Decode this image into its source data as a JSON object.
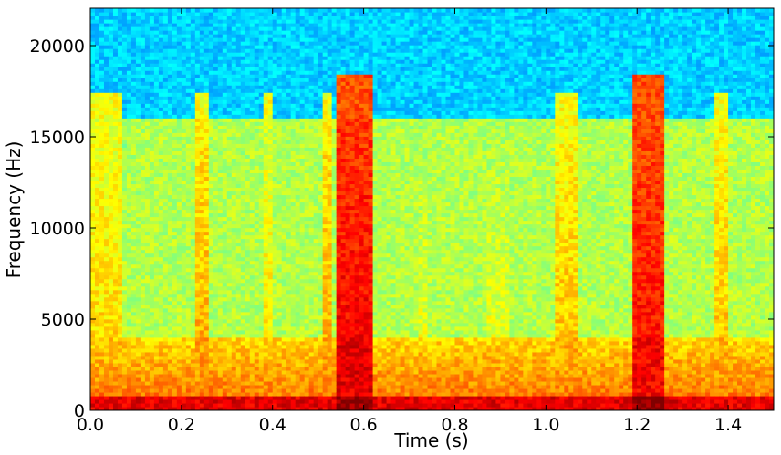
{
  "chart_data": {
    "type": "heatmap",
    "title": "",
    "xlabel": "Time (s)",
    "ylabel": "Frequency (Hz)",
    "xlim": [
      0.0,
      1.5
    ],
    "ylim": [
      0,
      22050
    ],
    "xticks": [
      0.0,
      0.2,
      0.4,
      0.6,
      0.8,
      1.0,
      1.2,
      1.4
    ],
    "xtick_labels": [
      "0.0",
      "0.2",
      "0.4",
      "0.6",
      "0.8",
      "1.0",
      "1.2",
      "1.4"
    ],
    "yticks": [
      0,
      5000,
      10000,
      15000,
      20000
    ],
    "ytick_labels": [
      "0",
      "5000",
      "10000",
      "15000",
      "20000"
    ],
    "colormap": "jet",
    "grid": false,
    "lowpass_cutoff_hz": 16000,
    "background_levels": {
      "above_cutoff": 0.33,
      "mid_band": 0.55,
      "low_band": 0.78,
      "bass_band": 0.9
    },
    "events": [
      {
        "t_start": 0.0,
        "t_end": 0.07,
        "level": 0.68
      },
      {
        "t_start": 0.06,
        "t_end": 0.08,
        "level": 0.6
      },
      {
        "t_start": 0.23,
        "t_end": 0.26,
        "level": 0.72
      },
      {
        "t_start": 0.38,
        "t_end": 0.4,
        "level": 0.66
      },
      {
        "t_start": 0.51,
        "t_end": 0.53,
        "level": 0.72
      },
      {
        "t_start": 0.545,
        "t_end": 0.62,
        "level": 0.9
      },
      {
        "t_start": 0.72,
        "t_end": 0.74,
        "level": 0.62
      },
      {
        "t_start": 0.87,
        "t_end": 0.92,
        "level": 0.62
      },
      {
        "t_start": 1.02,
        "t_end": 1.07,
        "level": 0.7
      },
      {
        "t_start": 1.19,
        "t_end": 1.26,
        "level": 0.88
      },
      {
        "t_start": 1.37,
        "t_end": 1.4,
        "level": 0.7
      }
    ],
    "colors": {
      "low": "#0000cc",
      "mid_low": "#00aaff",
      "mid": "#66ff99",
      "mid_high": "#ffff00",
      "high": "#ff6600",
      "max": "#990000"
    }
  }
}
